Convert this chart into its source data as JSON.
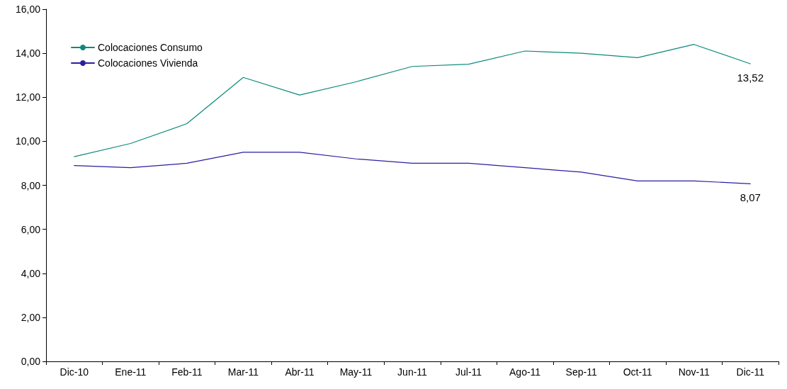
{
  "chart_data": {
    "type": "line",
    "categories": [
      "Dic-10",
      "Ene-11",
      "Feb-11",
      "Mar-11",
      "Abr-11",
      "May-11",
      "Jun-11",
      "Jul-11",
      "Ago-11",
      "Sep-11",
      "Oct-11",
      "Nov-11",
      "Dic-11"
    ],
    "series": [
      {
        "name": "Colocaciones Consumo",
        "color": "#0a8a7a",
        "values": [
          9.3,
          9.9,
          10.8,
          12.9,
          12.1,
          12.7,
          13.4,
          13.5,
          14.1,
          14.0,
          13.8,
          14.4,
          13.52
        ],
        "value_labels": [
          null,
          null,
          null,
          null,
          null,
          null,
          null,
          null,
          null,
          null,
          null,
          null,
          "13,52"
        ]
      },
      {
        "name": "Colocaciones Vivienda",
        "color": "#2a1fa0",
        "values": [
          8.9,
          8.8,
          9.0,
          9.5,
          9.5,
          9.2,
          9.0,
          9.0,
          8.8,
          8.6,
          8.2,
          8.2,
          8.07
        ],
        "value_labels": [
          null,
          null,
          null,
          null,
          null,
          null,
          null,
          null,
          null,
          null,
          null,
          null,
          "8,07"
        ]
      }
    ],
    "ylim": [
      0,
      16
    ],
    "yticks": [
      {
        "value": 0,
        "label": "0,00"
      },
      {
        "value": 2,
        "label": "2,00"
      },
      {
        "value": 4,
        "label": "4,00"
      },
      {
        "value": 6,
        "label": "6,00"
      },
      {
        "value": 8,
        "label": "8,00"
      },
      {
        "value": 10,
        "label": "10,00"
      },
      {
        "value": 12,
        "label": "12,00"
      },
      {
        "value": 14,
        "label": "14,00"
      },
      {
        "value": 16,
        "label": "16,00"
      }
    ],
    "grid": false,
    "legend": "top left",
    "marker": "none",
    "line_style": "solid"
  }
}
